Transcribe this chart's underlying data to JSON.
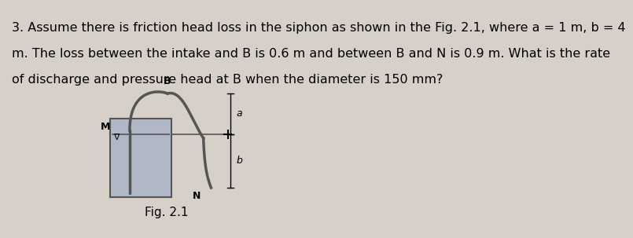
{
  "background_color": "#d6d0c8",
  "text_lines": [
    "3. Assume there is friction head loss in the siphon as shown in the Fig. 2.1, where a = 1 m, b = 4",
    "m. The loss between the intake and B is 0.6 m and between B and N is 0.9 m. What is the rate",
    "of discharge and pressure head at B when the diameter is 150 mm?"
  ],
  "fig_label": "Fig. 2.1",
  "text_fontsize": 11.5,
  "fig_label_fontsize": 11,
  "tank_color": "#b0b8c8",
  "tank_edge_color": "#555555",
  "pipe_color": "#555555",
  "label_M": "M",
  "label_B": "B",
  "label_N": "N",
  "label_a": "a",
  "label_b": "b"
}
